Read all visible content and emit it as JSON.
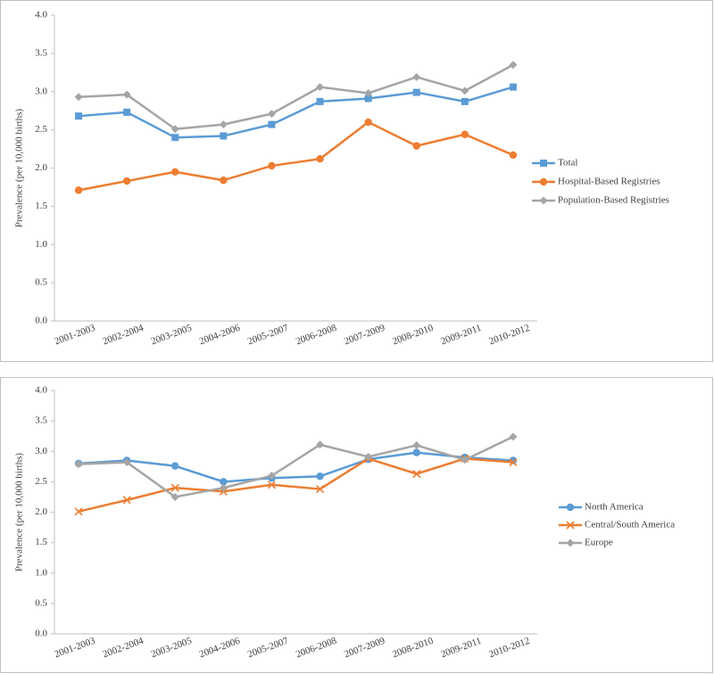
{
  "chart_data": [
    {
      "type": "line",
      "ylabel": "Prevalence (per 10,000 births)",
      "categories": [
        "2001-2003",
        "2002-2004",
        "2003-2005",
        "2004-2006",
        "2005-2007",
        "2006-2008",
        "2007-2009",
        "2008-2010",
        "2009-2011",
        "2010-2012"
      ],
      "series": [
        {
          "name": "Total",
          "color": "#5b9bd5",
          "marker": "square",
          "values": [
            2.68,
            2.73,
            2.4,
            2.42,
            2.57,
            2.87,
            2.91,
            2.99,
            2.87,
            3.06
          ]
        },
        {
          "name": "Hospital-Based Registries",
          "color": "#ed7d31",
          "marker": "circle",
          "values": [
            1.71,
            1.83,
            1.95,
            1.84,
            2.03,
            2.12,
            2.6,
            2.29,
            2.44,
            2.17
          ]
        },
        {
          "name": "Population-Based Registries",
          "color": "#a5a5a5",
          "marker": "diamond",
          "values": [
            2.93,
            2.96,
            2.51,
            2.57,
            2.71,
            3.06,
            2.98,
            3.19,
            3.01,
            3.35
          ]
        }
      ],
      "ylim": [
        0,
        4
      ],
      "yticks": [
        {
          "value": 0,
          "label": "0.0"
        },
        0.5,
        {
          "value": 1,
          "label": "1.0"
        },
        1.5,
        {
          "value": 2,
          "label": "2.0"
        },
        2.5,
        {
          "value": 3,
          "label": "3.0"
        },
        3.5,
        {
          "value": 4,
          "label": "4.0"
        }
      ],
      "legend": "right"
    },
    {
      "type": "line",
      "ylabel": "Prevalence (per 10,000 births)",
      "categories": [
        "2001-2003",
        "2002-2004",
        "2003-2005",
        "2004-2006",
        "2005-2007",
        "2006-2008",
        "2007-2009",
        "2008-2010",
        "2009-2011",
        "2010-2012"
      ],
      "series": [
        {
          "name": "North America",
          "color": "#5b9bd5",
          "marker": "circle",
          "values": [
            2.8,
            2.85,
            2.76,
            2.5,
            2.56,
            2.59,
            2.87,
            2.98,
            2.9,
            2.85
          ]
        },
        {
          "name": "Central/South America",
          "color": "#ed7d31",
          "marker": "x",
          "values": [
            2.01,
            2.2,
            2.4,
            2.34,
            2.45,
            2.38,
            2.88,
            2.63,
            2.88,
            2.82
          ]
        },
        {
          "name": "Europe",
          "color": "#a5a5a5",
          "marker": "diamond",
          "values": [
            2.79,
            2.82,
            2.25,
            2.4,
            2.6,
            3.11,
            2.91,
            3.1,
            2.86,
            3.24
          ]
        }
      ],
      "ylim": [
        0,
        4
      ],
      "yticks": [
        {
          "value": 0,
          "label": "0.0"
        },
        0.5,
        {
          "value": 1,
          "label": "1.0"
        },
        1.5,
        {
          "value": 2,
          "label": "2.0"
        },
        2.5,
        {
          "value": 3,
          "label": "3.0"
        },
        3.5,
        {
          "value": 4,
          "label": "4.0"
        }
      ],
      "legend": "right"
    }
  ]
}
